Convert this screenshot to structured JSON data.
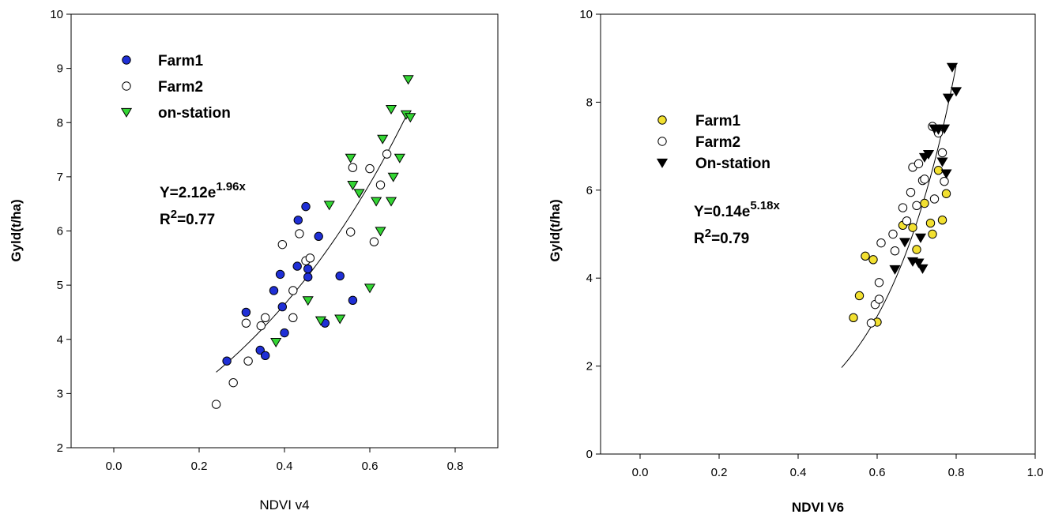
{
  "chart_data": [
    {
      "type": "scatter",
      "xlabel": "NDVI v4",
      "ylabel": "Gyld(t/ha)",
      "xlim": [
        -0.1,
        0.9
      ],
      "ylim": [
        2,
        10
      ],
      "xticks": [
        0.0,
        0.2,
        0.4,
        0.6,
        0.8
      ],
      "xtick_labels": [
        "0.0",
        "0.2",
        "0.4",
        "0.6",
        "0.8"
      ],
      "yticks": [
        2,
        3,
        4,
        5,
        6,
        7,
        8,
        9,
        10
      ],
      "ytick_labels": [
        "2",
        "3",
        "4",
        "5",
        "6",
        "7",
        "8",
        "9",
        "10"
      ],
      "grid": false,
      "legend_position": "top-left",
      "equation": {
        "prefix": "Y=2.12e",
        "exponent": "1.96x",
        "r2_prefix": "R",
        "r2_sup": "2",
        "r2_suffix": "=0.77"
      },
      "fit": {
        "a": 2.12,
        "b": 1.96,
        "x_range": [
          0.24,
          0.69
        ]
      },
      "series": [
        {
          "name": "Farm1",
          "marker": "circle",
          "fill": "#1f2fd6",
          "stroke": "#000000",
          "points": [
            [
              0.265,
              3.6
            ],
            [
              0.31,
              4.5
            ],
            [
              0.343,
              3.8
            ],
            [
              0.355,
              3.7
            ],
            [
              0.375,
              4.9
            ],
            [
              0.39,
              5.2
            ],
            [
              0.395,
              4.6
            ],
            [
              0.4,
              4.12
            ],
            [
              0.43,
              5.35
            ],
            [
              0.432,
              6.2
            ],
            [
              0.45,
              6.45
            ],
            [
              0.455,
              5.15
            ],
            [
              0.455,
              5.3
            ],
            [
              0.48,
              5.9
            ],
            [
              0.495,
              4.3
            ],
            [
              0.53,
              5.17
            ],
            [
              0.56,
              4.72
            ]
          ]
        },
        {
          "name": "Farm2",
          "marker": "circle",
          "fill": "#ffffff",
          "stroke": "#000000",
          "points": [
            [
              0.24,
              2.8
            ],
            [
              0.28,
              3.2
            ],
            [
              0.31,
              4.3
            ],
            [
              0.315,
              3.6
            ],
            [
              0.345,
              4.25
            ],
            [
              0.355,
              4.4
            ],
            [
              0.395,
              5.75
            ],
            [
              0.42,
              4.4
            ],
            [
              0.42,
              4.9
            ],
            [
              0.435,
              5.95
            ],
            [
              0.45,
              5.45
            ],
            [
              0.46,
              5.5
            ],
            [
              0.555,
              5.98
            ],
            [
              0.56,
              7.17
            ],
            [
              0.6,
              7.15
            ],
            [
              0.61,
              5.8
            ],
            [
              0.625,
              6.85
            ],
            [
              0.64,
              7.42
            ]
          ]
        },
        {
          "name": "on-station",
          "marker": "triangle-down",
          "fill": "#33d633",
          "stroke": "#000000",
          "points": [
            [
              0.38,
              3.95
            ],
            [
              0.455,
              4.72
            ],
            [
              0.485,
              4.35
            ],
            [
              0.505,
              6.48
            ],
            [
              0.53,
              4.38
            ],
            [
              0.555,
              7.35
            ],
            [
              0.56,
              6.85
            ],
            [
              0.575,
              6.7
            ],
            [
              0.6,
              4.95
            ],
            [
              0.615,
              6.55
            ],
            [
              0.625,
              6.0
            ],
            [
              0.63,
              7.7
            ],
            [
              0.65,
              6.55
            ],
            [
              0.65,
              8.25
            ],
            [
              0.655,
              7.0
            ],
            [
              0.67,
              7.35
            ],
            [
              0.685,
              8.15
            ],
            [
              0.69,
              8.8
            ],
            [
              0.695,
              8.1
            ]
          ]
        }
      ]
    },
    {
      "type": "scatter",
      "xlabel": "NDVI V6",
      "ylabel": "Gyld(t/ha)",
      "xlim": [
        -0.1,
        1.0
      ],
      "ylim": [
        0,
        10
      ],
      "xticks": [
        0.0,
        0.2,
        0.4,
        0.6,
        0.8,
        1.0
      ],
      "xtick_labels": [
        "0.0",
        "0.2",
        "0.4",
        "0.6",
        "0.8",
        "1.0"
      ],
      "yticks": [
        0,
        2,
        4,
        6,
        8,
        10
      ],
      "ytick_labels": [
        "0",
        "2",
        "4",
        "6",
        "8",
        "10"
      ],
      "grid": false,
      "legend_position": "top-left",
      "equation": {
        "prefix": "Y=0.14e",
        "exponent": "5.18x",
        "r2_prefix": "R",
        "r2_sup": "2",
        "r2_suffix": "=0.79"
      },
      "fit": {
        "a": 0.14,
        "b": 5.18,
        "x_range": [
          0.51,
          0.8
        ]
      },
      "series": [
        {
          "name": "Farm1",
          "marker": "circle",
          "fill": "#f2e030",
          "stroke": "#000000",
          "points": [
            [
              0.54,
              3.1
            ],
            [
              0.555,
              3.6
            ],
            [
              0.57,
              4.5
            ],
            [
              0.59,
              4.42
            ],
            [
              0.6,
              3.0
            ],
            [
              0.665,
              5.2
            ],
            [
              0.69,
              5.15
            ],
            [
              0.7,
              4.65
            ],
            [
              0.72,
              5.7
            ],
            [
              0.735,
              5.25
            ],
            [
              0.74,
              5.0
            ],
            [
              0.755,
              6.45
            ],
            [
              0.765,
              5.32
            ],
            [
              0.775,
              5.92
            ]
          ]
        },
        {
          "name": "Farm2",
          "marker": "circle",
          "fill": "#ffffff",
          "stroke": "#000000",
          "points": [
            [
              0.585,
              2.98
            ],
            [
              0.595,
              3.4
            ],
            [
              0.605,
              3.52
            ],
            [
              0.605,
              3.9
            ],
            [
              0.61,
              4.8
            ],
            [
              0.64,
              5.0
            ],
            [
              0.645,
              4.62
            ],
            [
              0.665,
              5.6
            ],
            [
              0.675,
              5.3
            ],
            [
              0.685,
              5.95
            ],
            [
              0.69,
              6.52
            ],
            [
              0.7,
              5.65
            ],
            [
              0.705,
              6.6
            ],
            [
              0.715,
              6.22
            ],
            [
              0.72,
              6.25
            ],
            [
              0.74,
              7.45
            ],
            [
              0.745,
              5.8
            ],
            [
              0.755,
              7.3
            ],
            [
              0.765,
              6.85
            ],
            [
              0.77,
              6.2
            ]
          ]
        },
        {
          "name": "On-station",
          "marker": "triangle-down",
          "fill": "#000000",
          "stroke": "#000000",
          "points": [
            [
              0.645,
              4.2
            ],
            [
              0.67,
              4.82
            ],
            [
              0.69,
              4.38
            ],
            [
              0.705,
              4.35
            ],
            [
              0.71,
              4.92
            ],
            [
              0.715,
              4.22
            ],
            [
              0.72,
              6.75
            ],
            [
              0.73,
              6.82
            ],
            [
              0.745,
              7.4
            ],
            [
              0.755,
              7.38
            ],
            [
              0.765,
              6.65
            ],
            [
              0.77,
              7.4
            ],
            [
              0.775,
              6.38
            ],
            [
              0.78,
              8.1
            ],
            [
              0.79,
              8.8
            ],
            [
              0.8,
              8.25
            ]
          ]
        }
      ]
    }
  ]
}
